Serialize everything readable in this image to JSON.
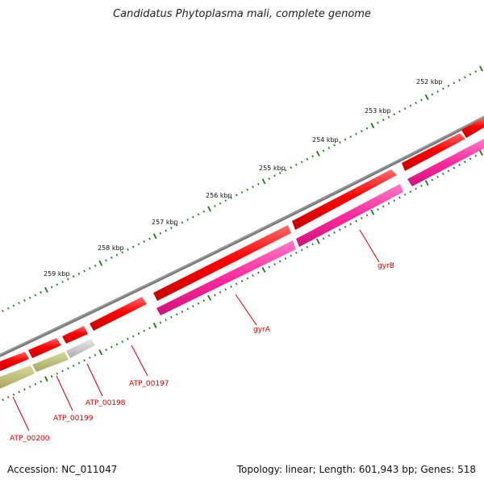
{
  "title": "Candidatus Phytoplasma mali, complete genome",
  "footer": {
    "accession": "Accession: NC_011047",
    "summary": "Topology: linear; Length: 601,943 bp; Genes: 518"
  },
  "ruler": {
    "labels": [
      "252 kbp",
      "253 kbp",
      "254 kbp",
      "255 kbp",
      "256 kbp",
      "257 kbp",
      "258 kbp",
      "259 kbp"
    ],
    "color": "#1a7a1a"
  },
  "genes": [
    {
      "name": "gyrB",
      "color": "#cc0000"
    },
    {
      "name": "gyrA",
      "color": "#cc0000"
    },
    {
      "name": "ATP_00197",
      "color": "#cc0000"
    },
    {
      "name": "ATP_00198",
      "color": "#cc0000"
    },
    {
      "name": "ATP_00199",
      "color": "#cc0000"
    },
    {
      "name": "ATP_00200",
      "color": "#cc0000"
    }
  ],
  "colors": {
    "backbone": "#808080",
    "cds": "#ff0000",
    "gene": "#ff2a9d",
    "rrna": "#bdbd7a",
    "other": "#c8c8c8"
  }
}
